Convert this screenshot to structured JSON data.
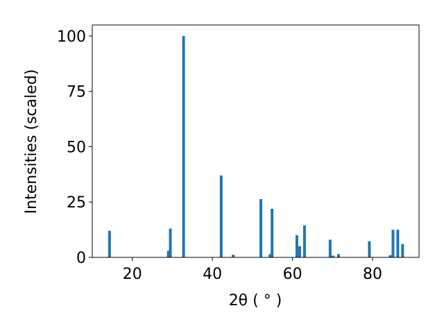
{
  "chart_data": {
    "type": "bar",
    "x_label": "2θ ( ° )",
    "y_label": "Intensities (scaled)",
    "x": [
      14.3,
      29.0,
      29.5,
      32.8,
      42.2,
      45.2,
      52.1,
      54.4,
      54.9,
      61.1,
      61.8,
      63.0,
      69.4,
      70.1,
      71.5,
      79.2,
      84.4,
      85.1,
      86.3,
      87.5
    ],
    "values": [
      12,
      3,
      13,
      100,
      37,
      1.2,
      26.3,
      1.5,
      22,
      10,
      5,
      14.5,
      8,
      0.8,
      1.5,
      7.3,
      1,
      12.5,
      12.5,
      6
    ],
    "color": "#1f77b4",
    "xlim": [
      10,
      91.6
    ],
    "xticks": [
      20,
      40,
      60,
      80
    ],
    "ylim": [
      0,
      105
    ],
    "yticks": [
      0,
      25,
      50,
      75,
      100
    ],
    "grid": false
  }
}
